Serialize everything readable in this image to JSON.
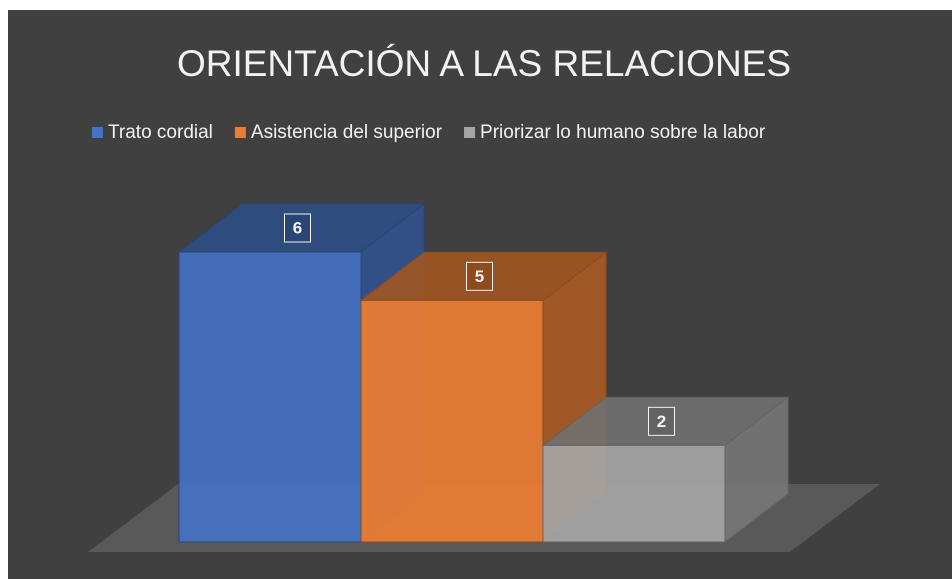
{
  "chart_data": {
    "type": "bar3d",
    "title": "ORIENTACIÓN A LAS RELACIONES",
    "series": [
      {
        "name": "Trato cordial",
        "color": "#4472c4",
        "values": [
          6
        ]
      },
      {
        "name": "Asistencia del superior",
        "color": "#ed7d31",
        "values": [
          5
        ]
      },
      {
        "name": "Priorizar lo humano sobre la labor",
        "color": "#a5a5a5",
        "values": [
          2
        ]
      }
    ]
  }
}
